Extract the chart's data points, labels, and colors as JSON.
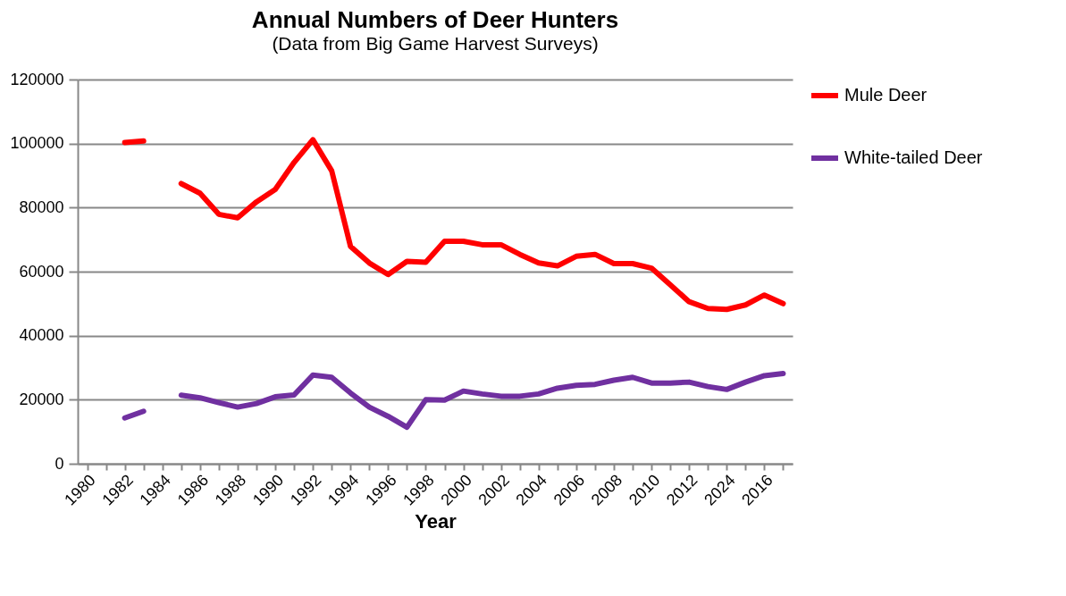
{
  "chart_data": {
    "type": "line",
    "title": "Annual Numbers of Deer Hunters",
    "subtitle": "(Data from Big Game Harvest Surveys)",
    "xlabel": "Year",
    "categories": [
      "1980",
      null,
      "1982",
      null,
      "1984",
      null,
      "1986",
      null,
      "1988",
      null,
      "1990",
      null,
      "1992",
      null,
      "1994",
      null,
      "1996",
      null,
      "1998",
      null,
      "2000",
      null,
      "2002",
      null,
      "2004",
      null,
      "2006",
      null,
      "2008",
      null,
      "2010",
      null,
      "2012",
      null,
      "2024",
      null,
      "2016",
      null
    ],
    "series": [
      {
        "name": "Mule Deer",
        "color": "#ff0000",
        "values": [
          null,
          null,
          100300,
          100800,
          null,
          87500,
          84500,
          77900,
          76800,
          81800,
          85700,
          94100,
          101200,
          91500,
          67900,
          62700,
          59100,
          63200,
          62900,
          69500,
          69500,
          68400,
          68400,
          65400,
          62700,
          61800,
          64800,
          65400,
          62500,
          62500,
          61100,
          55900,
          50600,
          48500,
          48200,
          49600,
          52700,
          50000
        ]
      },
      {
        "name": "White-tailed Deer",
        "color": "#7030a0",
        "values": [
          null,
          null,
          14300,
          16400,
          null,
          21400,
          20600,
          19100,
          17700,
          18800,
          20900,
          21500,
          27700,
          27000,
          22100,
          17700,
          14800,
          11400,
          20000,
          19900,
          22700,
          21800,
          21100,
          21100,
          21800,
          23600,
          24500,
          24800,
          26100,
          27000,
          25200,
          25200,
          25500,
          24100,
          23200,
          25500,
          27500,
          28200
        ]
      }
    ],
    "ylim": [
      0,
      120000
    ],
    "yticks": [
      0,
      20000,
      40000,
      60000,
      80000,
      100000,
      120000
    ],
    "grid": "y",
    "legend": "right"
  }
}
